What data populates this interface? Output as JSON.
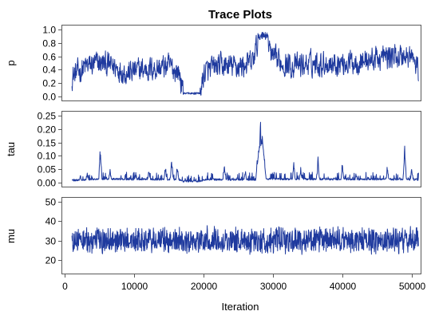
{
  "chart_data": {
    "type": "line",
    "title": "Trace Plots",
    "xlabel": "Iteration",
    "xlim": [
      1000,
      51000
    ],
    "x_ticks": [
      {
        "value": 0,
        "label": "0"
      },
      {
        "value": 10000,
        "label": "10000"
      },
      {
        "value": 20000,
        "label": "20000"
      },
      {
        "value": 30000,
        "label": "30000"
      },
      {
        "value": 40000,
        "label": "40000"
      },
      {
        "value": 50000,
        "label": "50000"
      }
    ],
    "line_color": "#1f3a9e",
    "grid": false,
    "panels": [
      {
        "ylabel": "p",
        "ylim": [
          0.0,
          1.0
        ],
        "y_ticks": [
          {
            "value": 0.0,
            "label": "0.0"
          },
          {
            "value": 0.2,
            "label": "0.2"
          },
          {
            "value": 0.4,
            "label": "0.4"
          },
          {
            "value": 0.6,
            "label": "0.6"
          },
          {
            "value": 0.8,
            "label": "0.8"
          },
          {
            "value": 1.0,
            "label": "1.0"
          }
        ],
        "profile": [
          [
            1000,
            0.3
          ],
          [
            3000,
            0.45
          ],
          [
            5000,
            0.5
          ],
          [
            7000,
            0.45
          ],
          [
            9000,
            0.35
          ],
          [
            11000,
            0.4
          ],
          [
            13000,
            0.42
          ],
          [
            15000,
            0.45
          ],
          [
            16500,
            0.35
          ],
          [
            17000,
            0.03
          ],
          [
            19500,
            0.03
          ],
          [
            20000,
            0.35
          ],
          [
            22000,
            0.45
          ],
          [
            25000,
            0.45
          ],
          [
            27000,
            0.5
          ],
          [
            28000,
            0.9
          ],
          [
            29000,
            0.8
          ],
          [
            30000,
            0.55
          ],
          [
            33000,
            0.45
          ],
          [
            36000,
            0.5
          ],
          [
            40000,
            0.5
          ],
          [
            44000,
            0.55
          ],
          [
            47000,
            0.6
          ],
          [
            50000,
            0.6
          ],
          [
            51000,
            0.35
          ]
        ],
        "noise": 0.28,
        "min": 0.02,
        "max": 0.97
      },
      {
        "ylabel": "tau",
        "ylim": [
          0.0,
          0.25
        ],
        "y_ticks": [
          {
            "value": 0.0,
            "label": "0.00"
          },
          {
            "value": 0.05,
            "label": "0.05"
          },
          {
            "value": 0.1,
            "label": "0.10"
          },
          {
            "value": 0.15,
            "label": "0.15"
          },
          {
            "value": 0.2,
            "label": "0.20"
          },
          {
            "value": 0.25,
            "label": "0.25"
          }
        ],
        "profile": [
          [
            1000,
            0.005
          ],
          [
            5000,
            0.01
          ],
          [
            16500,
            0.008
          ],
          [
            17000,
            0.002
          ],
          [
            19500,
            0.002
          ],
          [
            20000,
            0.008
          ],
          [
            27500,
            0.008
          ],
          [
            28000,
            0.12
          ],
          [
            28500,
            0.15
          ],
          [
            29000,
            0.01
          ],
          [
            51000,
            0.008
          ]
        ],
        "noise": 0.012,
        "min": 0.001,
        "max": 0.245,
        "spikes": [
          [
            2200,
            0.03
          ],
          [
            3200,
            0.04
          ],
          [
            5100,
            0.155
          ],
          [
            6500,
            0.05
          ],
          [
            10200,
            0.04
          ],
          [
            12100,
            0.05
          ],
          [
            14500,
            0.07
          ],
          [
            15400,
            0.1
          ],
          [
            16200,
            0.08
          ],
          [
            23000,
            0.08
          ],
          [
            26000,
            0.05
          ],
          [
            28200,
            0.245
          ],
          [
            33000,
            0.08
          ],
          [
            34000,
            0.06
          ],
          [
            36500,
            0.1
          ],
          [
            40000,
            0.08
          ],
          [
            42000,
            0.04
          ],
          [
            46500,
            0.07
          ],
          [
            49000,
            0.165
          ],
          [
            50000,
            0.06
          ]
        ]
      },
      {
        "ylabel": "mu",
        "ylim": [
          15,
          50
        ],
        "y_ticks": [
          {
            "value": 20,
            "label": "20"
          },
          {
            "value": 30,
            "label": "30"
          },
          {
            "value": 40,
            "label": "40"
          },
          {
            "value": 50,
            "label": "50"
          }
        ],
        "profile": [
          [
            1000,
            30
          ],
          [
            51000,
            30
          ]
        ],
        "noise": 6.5,
        "min": 16,
        "max": 48
      }
    ]
  }
}
